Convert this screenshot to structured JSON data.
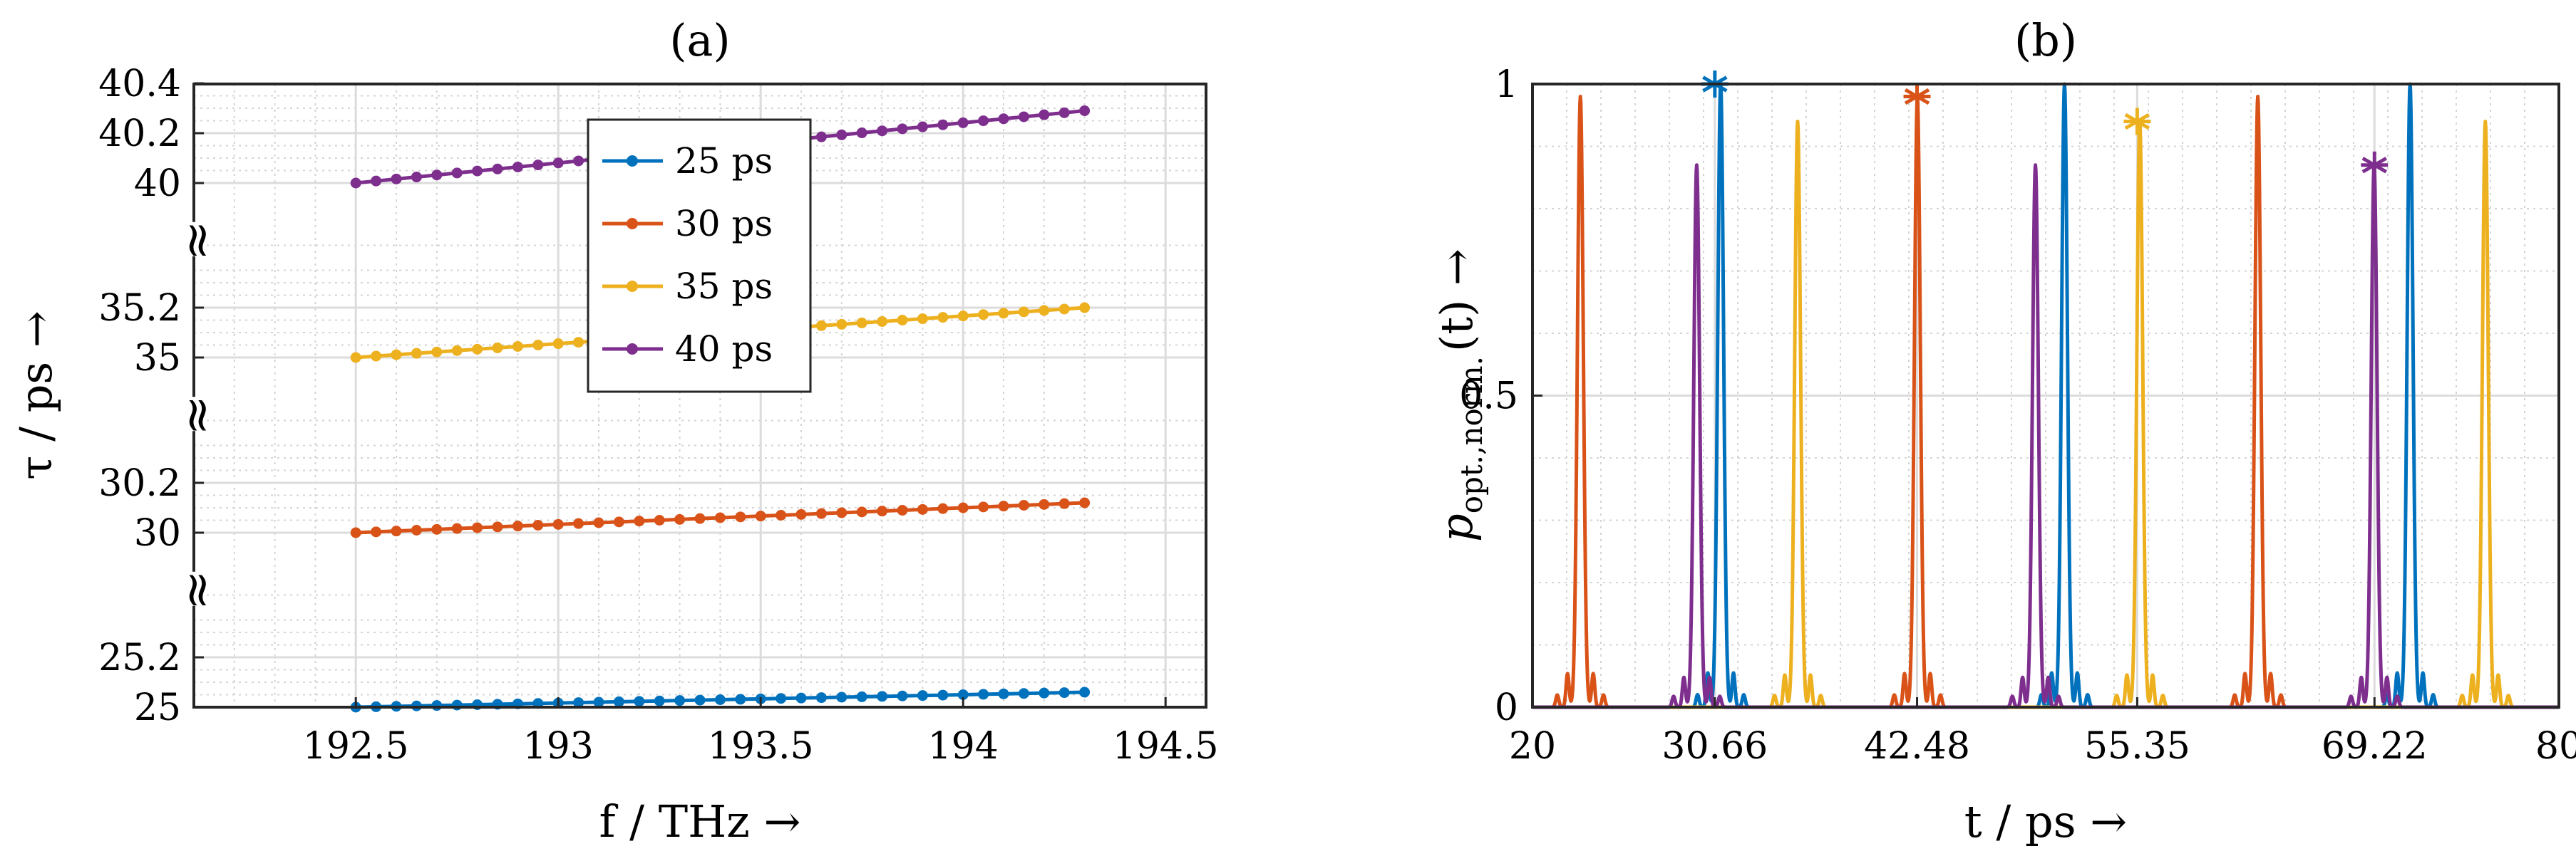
{
  "chart_data": [
    {
      "type": "line",
      "title": "(a)",
      "xlabel": "f / THz →",
      "ylabel": "τ / ps →",
      "xlim": [
        192.1,
        194.6
      ],
      "xticks": [
        "192.5",
        "193",
        "193.5",
        "194",
        "194.5"
      ],
      "xtick_values": [
        192.5,
        193,
        193.5,
        194,
        194.5
      ],
      "y_axis": "broken",
      "ytick_labels": [
        "25",
        "25.2",
        "30",
        "30.2",
        "35",
        "35.2",
        "40",
        "40.2",
        "40.4"
      ],
      "axis_breaks": [
        "≈",
        "≈",
        "≈"
      ],
      "grid": true,
      "legend_position": "top-center",
      "x": {
        "start": 192.5,
        "end": 194.3,
        "points": 37
      },
      "series": [
        {
          "name": "25 ps",
          "color": "#0072BD",
          "start": 25.0,
          "end": 25.06
        },
        {
          "name": "30 ps",
          "color": "#D95319",
          "start": 30.0,
          "end": 30.12
        },
        {
          "name": "35 ps",
          "color": "#EDB120",
          "start": 35.0,
          "end": 35.2
        },
        {
          "name": "40 ps",
          "color": "#7E2F8E",
          "start": 40.0,
          "end": 40.29
        }
      ]
    },
    {
      "type": "line",
      "title": "(b)",
      "xlabel": "t / ps →",
      "ylabel": "p",
      "ylabel_sub": "opt.,norm.",
      "ylabel_rest": "(t) →",
      "xlim": [
        20,
        80
      ],
      "ylim": [
        0,
        1
      ],
      "xticks": [
        "20",
        "30.66",
        "42.48",
        "55.35",
        "69.22",
        "80"
      ],
      "xtick_values": [
        20,
        30.66,
        42.48,
        55.35,
        69.22,
        80
      ],
      "yticks": [
        "0",
        "0.5",
        "1"
      ],
      "grid": true,
      "series": [
        {
          "color": "#D95319",
          "peaks": [
            [
              22.8,
              0.98
            ],
            [
              42.5,
              0.98
            ],
            [
              62.4,
              0.98
            ]
          ]
        },
        {
          "color": "#0072BD",
          "peaks": [
            [
              31.0,
              1.0
            ],
            [
              51.1,
              1.0
            ],
            [
              71.3,
              1.0
            ]
          ]
        },
        {
          "color": "#EDB120",
          "peaks": [
            [
              35.5,
              0.94
            ],
            [
              55.5,
              0.94
            ],
            [
              75.7,
              0.94
            ]
          ]
        },
        {
          "color": "#7E2F8E",
          "peaks": [
            [
              29.6,
              0.87
            ],
            [
              49.4,
              0.87
            ],
            [
              69.2,
              0.87
            ]
          ]
        }
      ],
      "markers": [
        {
          "x": 30.66,
          "y": 1.0,
          "color": "#0072BD",
          "symbol": "*"
        },
        {
          "x": 42.48,
          "y": 0.98,
          "color": "#D95319",
          "symbol": "*"
        },
        {
          "x": 55.35,
          "y": 0.94,
          "color": "#EDB120",
          "symbol": "*"
        },
        {
          "x": 69.22,
          "y": 0.87,
          "color": "#7E2F8E",
          "symbol": "*"
        }
      ]
    }
  ]
}
